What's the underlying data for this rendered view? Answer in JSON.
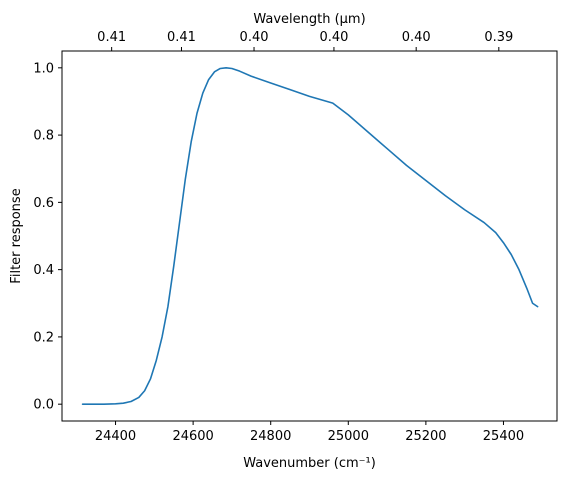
{
  "chart_data": {
    "type": "line",
    "xlabel": "Wavenumber (cm⁻¹)",
    "ylabel": "Filter response",
    "top_xlabel": "Wavelength (μm)",
    "xlim": [
      24262,
      25538
    ],
    "ylim": [
      -0.05,
      1.05
    ],
    "x_ticks": [
      24400,
      24600,
      24800,
      25000,
      25200,
      25400
    ],
    "y_ticks": [
      0.0,
      0.2,
      0.4,
      0.6,
      0.8,
      1.0
    ],
    "top_ticks": [
      {
        "label": "0.41",
        "wavenumber": 24390
      },
      {
        "label": "0.41",
        "wavenumber": 24570
      },
      {
        "label": "0.40",
        "wavenumber": 24757
      },
      {
        "label": "0.40",
        "wavenumber": 24963
      },
      {
        "label": "0.40",
        "wavenumber": 25175
      },
      {
        "label": "0.39",
        "wavenumber": 25388
      }
    ],
    "grid": false,
    "line_color": "#1f77b4",
    "series": [
      {
        "x": [
          24315,
          24340,
          24370,
          24400,
          24420,
          24440,
          24460,
          24475,
          24490,
          24505,
          24520,
          24535,
          24550,
          24565,
          24580,
          24595,
          24610,
          24625,
          24640,
          24655,
          24670,
          24685,
          24700,
          24720,
          24750,
          24800,
          24850,
          24900,
          24960,
          25000,
          25050,
          25100,
          25150,
          25200,
          25250,
          25300,
          25350,
          25380,
          25400,
          25420,
          25440,
          25460,
          25475,
          25488
        ],
        "y": [
          0.0,
          0.0,
          0.0,
          0.001,
          0.003,
          0.008,
          0.02,
          0.04,
          0.075,
          0.13,
          0.2,
          0.29,
          0.41,
          0.54,
          0.67,
          0.78,
          0.865,
          0.925,
          0.965,
          0.988,
          0.998,
          1.0,
          0.998,
          0.99,
          0.975,
          0.955,
          0.935,
          0.915,
          0.895,
          0.86,
          0.81,
          0.76,
          0.71,
          0.665,
          0.62,
          0.578,
          0.54,
          0.51,
          0.48,
          0.445,
          0.4,
          0.345,
          0.3,
          0.29
        ]
      }
    ]
  }
}
